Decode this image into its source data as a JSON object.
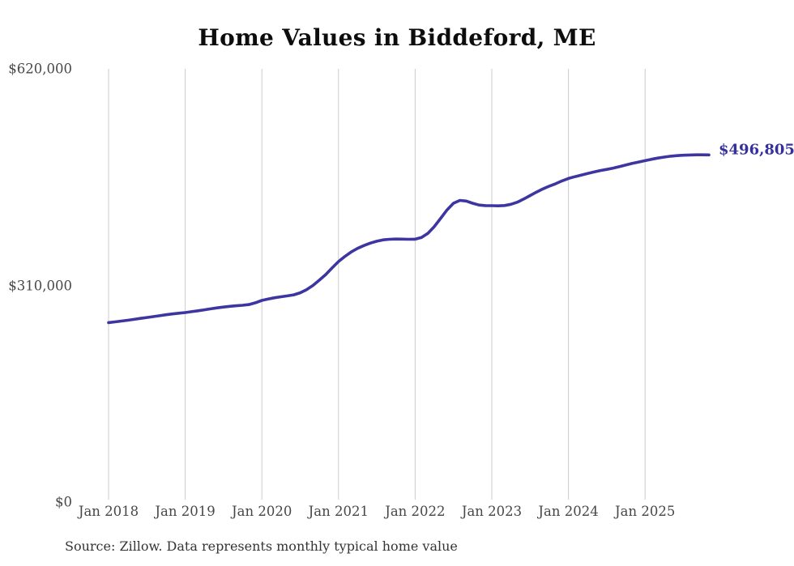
{
  "chart": {
    "title": "Home Values in Biddeford, ME",
    "end_label": "$496,805",
    "source": "Source: Zillow. Data represents monthly typical home value"
  },
  "colors": {
    "line": "#3d35a0",
    "end_label_text": "#35309b",
    "grid": "#cbcbcb",
    "tick_text": "#474747",
    "title_text": "#0d0d0d",
    "source_text": "#343434",
    "background": "#ffffff"
  },
  "chart_data": {
    "type": "line",
    "title": "Home Values in Biddeford, ME",
    "series_name": "Monthly typical home value",
    "annotation": "$496,805",
    "last_value": 496805,
    "xlabel": "",
    "ylabel": "",
    "ylim": [
      0,
      620000
    ],
    "y_tick_values": [
      0,
      310000,
      620000
    ],
    "y_tick_labels": [
      "$0",
      "$310,000",
      "$620,000"
    ],
    "x_tick_labels": [
      "Jan 2018",
      "Jan 2019",
      "Jan 2020",
      "Jan 2021",
      "Jan 2022",
      "Jan 2023",
      "Jan 2024",
      "Jan 2025"
    ],
    "grid": "vertical-only",
    "legend": "none",
    "months": [
      "2018-01",
      "2018-02",
      "2018-03",
      "2018-04",
      "2018-05",
      "2018-06",
      "2018-07",
      "2018-08",
      "2018-09",
      "2018-10",
      "2018-11",
      "2018-12",
      "2019-01",
      "2019-02",
      "2019-03",
      "2019-04",
      "2019-05",
      "2019-06",
      "2019-07",
      "2019-08",
      "2019-09",
      "2019-10",
      "2019-11",
      "2019-12",
      "2020-01",
      "2020-02",
      "2020-03",
      "2020-04",
      "2020-05",
      "2020-06",
      "2020-07",
      "2020-08",
      "2020-09",
      "2020-10",
      "2020-11",
      "2020-12",
      "2021-01",
      "2021-02",
      "2021-03",
      "2021-04",
      "2021-05",
      "2021-06",
      "2021-07",
      "2021-08",
      "2021-09",
      "2021-10",
      "2021-11",
      "2021-12",
      "2022-01",
      "2022-02",
      "2022-03",
      "2022-04",
      "2022-05",
      "2022-06",
      "2022-07",
      "2022-08",
      "2022-09",
      "2022-10",
      "2022-11",
      "2022-12",
      "2023-01",
      "2023-02",
      "2023-03",
      "2023-04",
      "2023-05",
      "2023-06",
      "2023-07",
      "2023-08",
      "2023-09",
      "2023-10",
      "2023-11",
      "2023-12",
      "2024-01",
      "2024-02",
      "2024-03",
      "2024-04",
      "2024-05",
      "2024-06",
      "2024-07",
      "2024-08",
      "2024-09",
      "2024-10",
      "2024-11",
      "2024-12",
      "2025-01",
      "2025-02",
      "2025-03",
      "2025-04",
      "2025-05",
      "2025-06",
      "2025-07",
      "2025-08",
      "2025-09",
      "2025-10",
      "2025-11"
    ],
    "values": [
      256800,
      257900,
      259000,
      260200,
      261500,
      262800,
      264100,
      265400,
      266700,
      268000,
      269200,
      270300,
      271200,
      272400,
      273700,
      275100,
      276500,
      277900,
      279100,
      280100,
      280900,
      281600,
      282700,
      285200,
      288600,
      290500,
      292400,
      293800,
      295000,
      296500,
      299500,
      304000,
      310000,
      317500,
      325500,
      335000,
      344200,
      351500,
      358000,
      363100,
      367100,
      370600,
      373300,
      375200,
      376100,
      376400,
      376300,
      376100,
      376200,
      378600,
      384600,
      394100,
      406100,
      418100,
      427600,
      431700,
      430800,
      427600,
      425100,
      424300,
      424200,
      423900,
      424400,
      426100,
      429100,
      433600,
      438600,
      443600,
      448100,
      452100,
      455600,
      459600,
      463100,
      465600,
      467900,
      470100,
      472400,
      474400,
      476100,
      477900,
      480100,
      482400,
      484600,
      486600,
      488600,
      490600,
      492300,
      493700,
      494900,
      495800,
      496400,
      496700,
      496900,
      496900,
      496805
    ]
  }
}
